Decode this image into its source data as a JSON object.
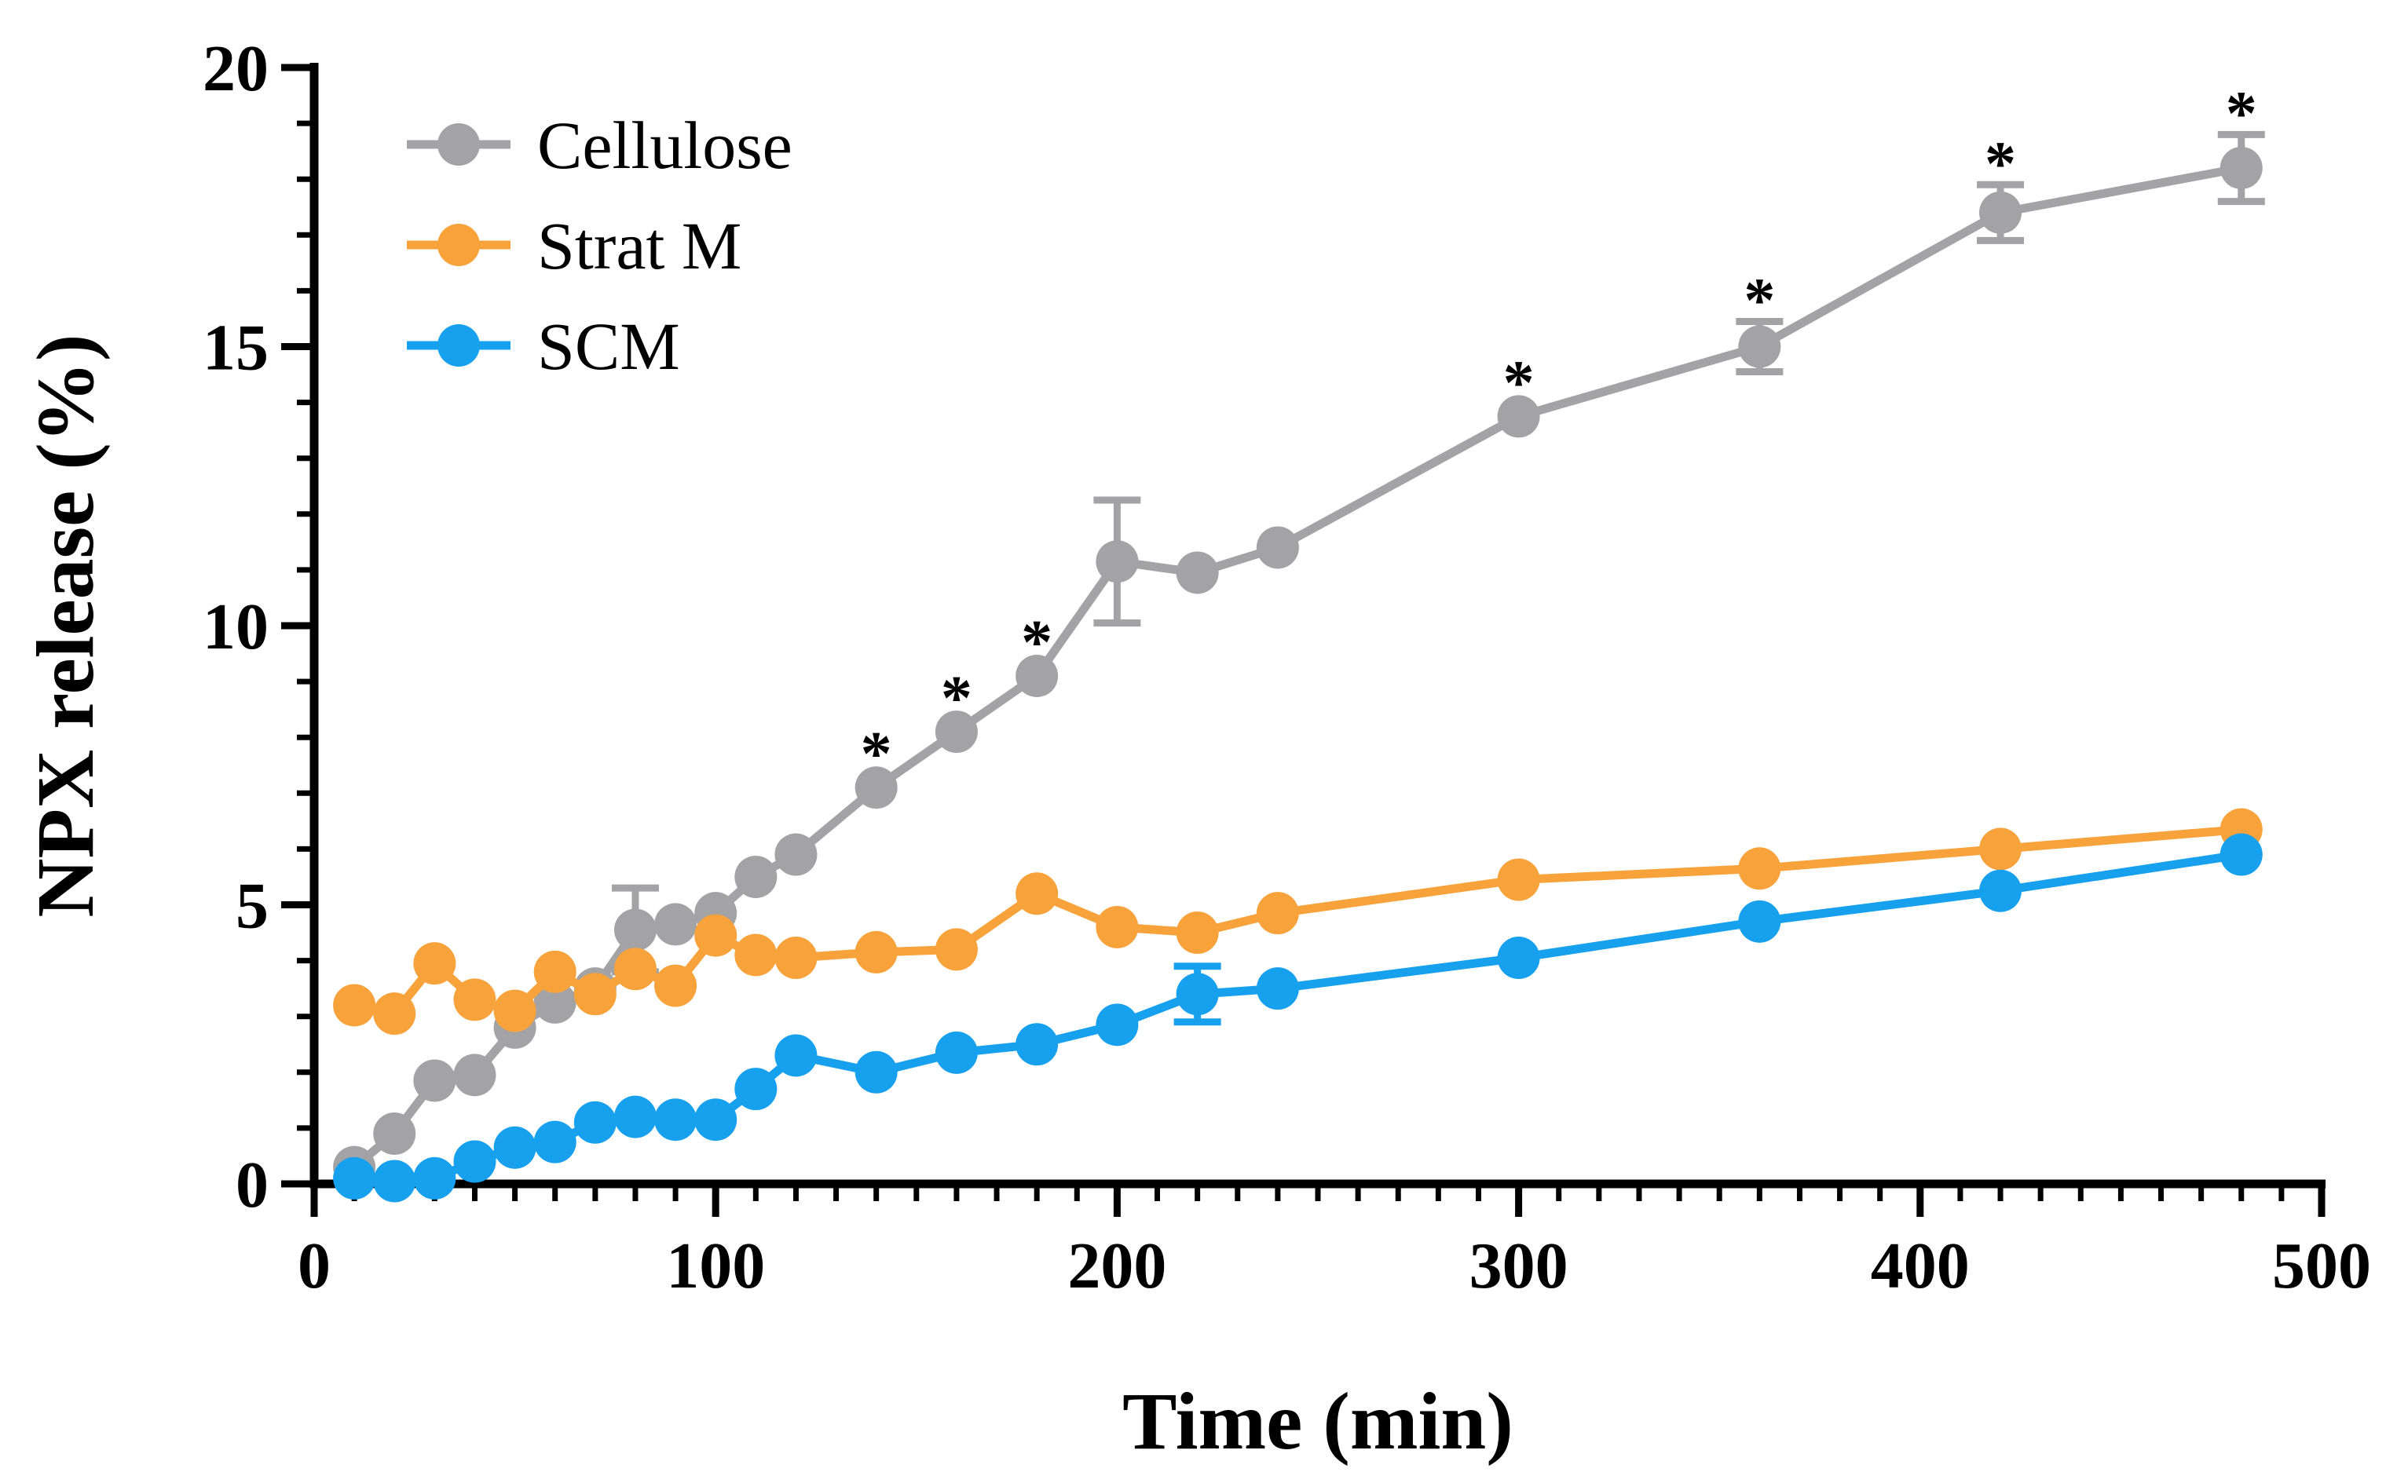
{
  "chart_data": {
    "type": "line",
    "title": "",
    "xlabel": "Time (min)",
    "ylabel": "NPX release (%)",
    "xlim": [
      0,
      500
    ],
    "ylim": [
      0,
      20
    ],
    "xticks": [
      0,
      100,
      200,
      300,
      400,
      500
    ],
    "yticks": [
      0,
      5,
      10,
      15,
      20
    ],
    "x_minor_step": 10,
    "y_minor_step": 1,
    "grid": false,
    "legend_position": "top-left",
    "significance_marker": "*",
    "series": [
      {
        "name": "Cellulose",
        "color": "#a3a3a5",
        "points": [
          {
            "x": 10,
            "y": 0.3
          },
          {
            "x": 20,
            "y": 0.9
          },
          {
            "x": 30,
            "y": 1.85
          },
          {
            "x": 40,
            "y": 1.95
          },
          {
            "x": 50,
            "y": 2.8
          },
          {
            "x": 60,
            "y": 3.25
          },
          {
            "x": 70,
            "y": 3.5
          },
          {
            "x": 80,
            "y": 4.55,
            "err": 0.75
          },
          {
            "x": 90,
            "y": 4.65
          },
          {
            "x": 100,
            "y": 4.85
          },
          {
            "x": 110,
            "y": 5.5
          },
          {
            "x": 120,
            "y": 5.9
          },
          {
            "x": 140,
            "y": 7.1,
            "sig": true
          },
          {
            "x": 160,
            "y": 8.1,
            "sig": true
          },
          {
            "x": 180,
            "y": 9.1,
            "sig": true
          },
          {
            "x": 200,
            "y": 11.15,
            "err": 1.1
          },
          {
            "x": 220,
            "y": 10.95
          },
          {
            "x": 240,
            "y": 11.4
          },
          {
            "x": 300,
            "y": 13.75,
            "sig": true
          },
          {
            "x": 360,
            "y": 15.0,
            "err": 0.45,
            "sig": true
          },
          {
            "x": 420,
            "y": 17.4,
            "err": 0.5,
            "sig": true
          },
          {
            "x": 480,
            "y": 18.2,
            "err": 0.6,
            "sig": true
          }
        ]
      },
      {
        "name": "Strat M",
        "color": "#f7a23b",
        "points": [
          {
            "x": 10,
            "y": 3.2
          },
          {
            "x": 20,
            "y": 3.05
          },
          {
            "x": 30,
            "y": 3.95
          },
          {
            "x": 40,
            "y": 3.3
          },
          {
            "x": 50,
            "y": 3.1
          },
          {
            "x": 60,
            "y": 3.8
          },
          {
            "x": 70,
            "y": 3.4
          },
          {
            "x": 80,
            "y": 3.85
          },
          {
            "x": 90,
            "y": 3.55
          },
          {
            "x": 100,
            "y": 4.45
          },
          {
            "x": 110,
            "y": 4.1
          },
          {
            "x": 120,
            "y": 4.05
          },
          {
            "x": 140,
            "y": 4.15
          },
          {
            "x": 160,
            "y": 4.2
          },
          {
            "x": 180,
            "y": 5.2
          },
          {
            "x": 200,
            "y": 4.6
          },
          {
            "x": 220,
            "y": 4.5
          },
          {
            "x": 240,
            "y": 4.85
          },
          {
            "x": 300,
            "y": 5.45
          },
          {
            "x": 360,
            "y": 5.65
          },
          {
            "x": 420,
            "y": 6.0
          },
          {
            "x": 480,
            "y": 6.35
          }
        ]
      },
      {
        "name": "SCM",
        "color": "#16a0ee",
        "points": [
          {
            "x": 10,
            "y": 0.1
          },
          {
            "x": 20,
            "y": 0.05
          },
          {
            "x": 30,
            "y": 0.1
          },
          {
            "x": 40,
            "y": 0.4
          },
          {
            "x": 50,
            "y": 0.65
          },
          {
            "x": 60,
            "y": 0.75
          },
          {
            "x": 70,
            "y": 1.1
          },
          {
            "x": 80,
            "y": 1.2
          },
          {
            "x": 90,
            "y": 1.15
          },
          {
            "x": 100,
            "y": 1.15
          },
          {
            "x": 110,
            "y": 1.7
          },
          {
            "x": 120,
            "y": 2.3
          },
          {
            "x": 140,
            "y": 2.0
          },
          {
            "x": 160,
            "y": 2.35
          },
          {
            "x": 180,
            "y": 2.5
          },
          {
            "x": 200,
            "y": 2.85
          },
          {
            "x": 220,
            "y": 3.4,
            "err": 0.5
          },
          {
            "x": 240,
            "y": 3.5
          },
          {
            "x": 300,
            "y": 4.05
          },
          {
            "x": 360,
            "y": 4.7
          },
          {
            "x": 420,
            "y": 5.25
          },
          {
            "x": 480,
            "y": 5.9
          }
        ]
      }
    ]
  }
}
